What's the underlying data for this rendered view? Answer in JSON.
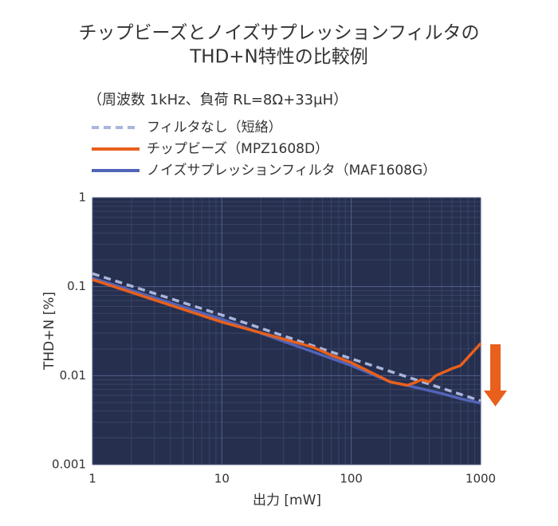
{
  "chart_data": {
    "type": "line",
    "title": [
      "チップビーズとノイズサプレッションフィルタの",
      "THD+N特性の比較例"
    ],
    "subtitle": "（周波数 1kHz、負荷 RL=8Ω+33μH）",
    "x_label": "出力 [mW]",
    "y_label": "THD+N [%]",
    "log_x": true,
    "log_y": true,
    "grid": true,
    "minor_grid": true,
    "xlim": [
      1,
      1000
    ],
    "ylim": [
      0.001,
      1
    ],
    "xticks": [
      1,
      10,
      100,
      1000
    ],
    "yticks": [
      0.001,
      0.01,
      0.1,
      1
    ],
    "series": [
      {
        "name": "フィルタなし（短絡）",
        "color": "#aab5dd",
        "dashed": true,
        "x": [
          1,
          10,
          100,
          1000
        ],
        "values": [
          0.14,
          0.048,
          0.0155,
          0.0052
        ]
      },
      {
        "name": "チップビーズ（MPZ1608D）",
        "color": "#e8601c",
        "dashed": false,
        "x": [
          1,
          10,
          50,
          70,
          100,
          200,
          270,
          300,
          350,
          400,
          450,
          600,
          700,
          1000
        ],
        "values": [
          0.12,
          0.04,
          0.021,
          0.017,
          0.014,
          0.0085,
          0.0078,
          0.0082,
          0.009,
          0.0085,
          0.01,
          0.012,
          0.013,
          0.023
        ]
      },
      {
        "name": "ノイズサプレッションフィルタ（MAF1608G）",
        "color": "#5264b8",
        "dashed": false,
        "x": [
          1,
          10,
          100,
          200,
          300,
          500,
          700,
          1000
        ],
        "values": [
          0.125,
          0.043,
          0.013,
          0.0085,
          0.0075,
          0.0063,
          0.0055,
          0.0049
        ]
      }
    ]
  }
}
